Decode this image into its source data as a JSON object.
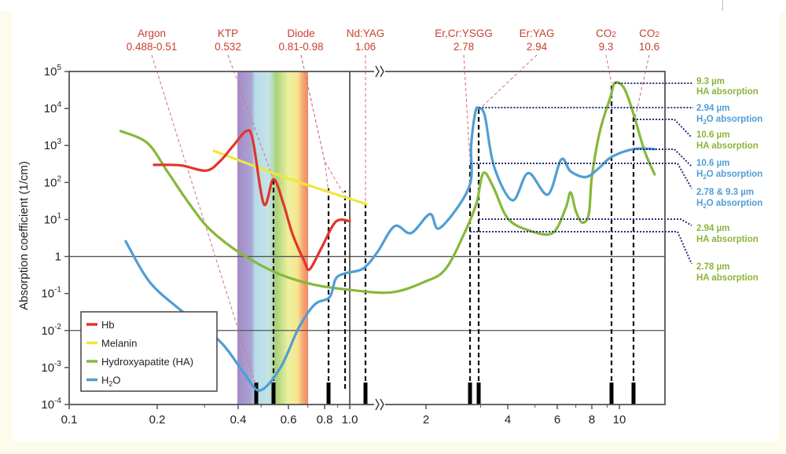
{
  "chart_data": {
    "type": "line",
    "title": "",
    "xlabel": "",
    "ylabel": "Absorption coefficient (1/cm)",
    "x_scale": "log (axis broken between 1.0 and 2)",
    "y_scale": "log",
    "xlim": [
      0.1,
      13
    ],
    "ylim": [
      0.0001,
      100000
    ],
    "x_ticks": [
      {
        "value": 0.1,
        "label": "0.1"
      },
      {
        "value": 0.2,
        "label": "0.2"
      },
      {
        "value": 0.4,
        "label": "0.4"
      },
      {
        "value": 0.6,
        "label": "0.6"
      },
      {
        "value": 0.8,
        "label": "0.8"
      },
      {
        "value": 1.0,
        "label": "1.0"
      },
      {
        "value": 2,
        "label": "2"
      },
      {
        "value": 4,
        "label": "4"
      },
      {
        "value": 6,
        "label": "6"
      },
      {
        "value": 8,
        "label": "8"
      },
      {
        "value": 10,
        "label": "10"
      }
    ],
    "y_ticks": [
      {
        "value": 100000,
        "base": "10",
        "exp": "5"
      },
      {
        "value": 10000,
        "base": "10",
        "exp": "4"
      },
      {
        "value": 1000,
        "base": "10",
        "exp": "3"
      },
      {
        "value": 100,
        "base": "10",
        "exp": "2"
      },
      {
        "value": 10,
        "base": "10",
        "exp": "1"
      },
      {
        "value": 1,
        "base": "1",
        "exp": ""
      },
      {
        "value": 0.1,
        "base": "10",
        "exp": "-1"
      },
      {
        "value": 0.01,
        "base": "10",
        "exp": "-2"
      },
      {
        "value": 0.001,
        "base": "10",
        "exp": "-3"
      },
      {
        "value": 0.0001,
        "base": "10",
        "exp": "-4"
      }
    ],
    "gridlines_y": [
      1,
      0.01
    ],
    "legend_position": "bottom-left",
    "series": [
      {
        "name": "Hb",
        "color": "#e3342b",
        "points": [
          [
            0.195,
            300
          ],
          [
            0.245,
            290
          ],
          [
            0.304,
            210
          ],
          [
            0.343,
            380
          ],
          [
            0.384,
            1000
          ],
          [
            0.438,
            2450
          ],
          [
            0.47,
            1400
          ],
          [
            0.507,
            26
          ],
          [
            0.532,
            123
          ],
          [
            0.575,
            28
          ],
          [
            0.62,
            4
          ],
          [
            0.68,
            0.76
          ],
          [
            0.71,
            0.45
          ],
          [
            0.78,
            1.7
          ],
          [
            0.88,
            8.7
          ],
          [
            1.0,
            9
          ]
        ]
      },
      {
        "name": "Melanin",
        "color": "#eee83a",
        "points": [
          [
            0.325,
            720
          ],
          [
            0.58,
            140
          ],
          [
            1.07,
            26
          ]
        ]
      },
      {
        "name": "Hydroxyapatite (HA)",
        "color": "#86b83a",
        "points": [
          [
            0.15,
            2450
          ],
          [
            0.185,
            1170
          ],
          [
            0.218,
            200
          ],
          [
            0.262,
            28
          ],
          [
            0.314,
            5.4
          ],
          [
            0.415,
            1.17
          ],
          [
            0.55,
            0.35
          ],
          [
            0.72,
            0.18
          ],
          [
            0.98,
            0.13
          ],
          [
            1.38,
            0.107
          ],
          [
            1.98,
            0.21
          ],
          [
            2.32,
            0.47
          ],
          [
            2.7,
            5.4
          ],
          [
            2.9,
            28
          ],
          [
            3.09,
            180
          ],
          [
            3.43,
            76
          ],
          [
            4.0,
            10.7
          ],
          [
            4.75,
            5.1
          ],
          [
            5.77,
            4.3
          ],
          [
            6.43,
            20
          ],
          [
            6.7,
            54
          ],
          [
            7.0,
            17
          ],
          [
            7.38,
            8.3
          ],
          [
            7.8,
            14
          ],
          [
            8.0,
            140
          ],
          [
            8.5,
            2350
          ],
          [
            9.25,
            22000
          ],
          [
            9.6,
            50000
          ],
          [
            10.2,
            35000
          ],
          [
            10.6,
            7100
          ],
          [
            11.4,
            720
          ],
          [
            12.2,
            165
          ]
        ]
      },
      {
        "name": "H2O",
        "label_base": "H",
        "label_sub": "2",
        "label_rest": "O",
        "color": "#4f9ed4",
        "points": [
          [
            0.156,
            2.6
          ],
          [
            0.188,
            0.21
          ],
          [
            0.245,
            0.035
          ],
          [
            0.343,
            0.005
          ],
          [
            0.427,
            0.0007
          ],
          [
            0.497,
            0.00024
          ],
          [
            0.563,
            0.001
          ],
          [
            0.65,
            0.0115
          ],
          [
            0.738,
            0.05
          ],
          [
            0.82,
            0.08
          ],
          [
            0.88,
            0.25
          ],
          [
            0.98,
            0.35
          ],
          [
            1.05,
            0.47
          ],
          [
            1.2,
            1.3
          ],
          [
            1.44,
            6.6
          ],
          [
            1.71,
            4.3
          ],
          [
            2.06,
            14
          ],
          [
            2.22,
            5.9
          ],
          [
            2.76,
            75
          ],
          [
            2.8,
            1000
          ],
          [
            2.88,
            8300
          ],
          [
            2.95,
            10000
          ],
          [
            3.14,
            6200
          ],
          [
            3.46,
            270
          ],
          [
            4.16,
            33
          ],
          [
            4.73,
            180
          ],
          [
            5.55,
            47
          ],
          [
            6.2,
            420
          ],
          [
            6.7,
            200
          ],
          [
            7.6,
            140
          ],
          [
            8.4,
            235
          ],
          [
            9.3,
            490
          ],
          [
            10.6,
            800
          ],
          [
            12.2,
            800
          ]
        ]
      }
    ],
    "lasers": [
      {
        "name": "Argon",
        "wavelength_label": "0.488-0.51",
        "wavelengths": [
          0.488
        ],
        "dashed_to": [
          null
        ]
      },
      {
        "name": "KTP",
        "wavelength_label": "0.532",
        "wavelengths": [
          0.532
        ],
        "dashed_to": [
          123
        ]
      },
      {
        "name": "Diode",
        "wavelength_label": "0.81-0.98",
        "wavelengths": [
          0.81,
          0.98
        ],
        "dashed_to": [
          70,
          60
        ]
      },
      {
        "name": "Nd:YAG",
        "wavelength_label": "1.06",
        "wavelengths": [
          1.06
        ],
        "dashed_to": [
          26
        ]
      },
      {
        "name": "Er,Cr:YSGG",
        "wavelength_label": "2.78",
        "wavelengths": [
          2.78
        ],
        "dashed_to": [
          300
        ]
      },
      {
        "name": "Er:YAG",
        "wavelength_label": "2.94",
        "wavelengths": [
          2.94
        ],
        "dashed_to": [
          10000
        ]
      },
      {
        "name": "CO",
        "name_sub": "2",
        "wavelength_label": "9.3",
        "wavelengths": [
          9.3
        ],
        "dashed_to": [
          50000
        ]
      },
      {
        "name": "CO",
        "name_sub": "2",
        "wavelength_label": "10.6",
        "wavelengths": [
          10.6
        ],
        "dashed_to": [
          7000
        ]
      }
    ],
    "annotations": [
      {
        "line1": "9.3 µm",
        "line2": "HA absorption",
        "color": "#8cb43a",
        "value": 50000,
        "from": 9.6
      },
      {
        "line1": "2.94 µm",
        "line2_pre": "H",
        "line2_sub": "2",
        "line2": "O absorption",
        "color": "#4f9ed4",
        "value": 10000,
        "from": 2.95
      },
      {
        "line1": "10.6 µm",
        "line2": "HA absorption",
        "color": "#8cb43a",
        "value": 7100,
        "from": 10.6
      },
      {
        "line1": "10.6 µm",
        "line2_pre": "H",
        "line2_sub": "2",
        "line2": "O absorption",
        "color": "#4f9ed4",
        "value": 800,
        "from": 10.6
      },
      {
        "line1": "2.78 & 9.3 µm",
        "line2_pre": "H",
        "line2_sub": "2",
        "line2": "O absorption",
        "color": "#4f9ed4",
        "value": 400,
        "from": 2.78
      },
      {
        "line1": "2.94 µm",
        "line2": "HA absorption",
        "color": "#8cb43a",
        "value": 10,
        "from": 2.94
      },
      {
        "line1": "2.78 µm",
        "line2": "HA absorption",
        "color": "#8cb43a",
        "value": 4.5,
        "from": 2.78
      }
    ],
    "visible_spectrum_band": [
      0.4,
      0.7
    ],
    "colors": {
      "laser_label": "#c8402f",
      "frame": "#555555"
    }
  }
}
